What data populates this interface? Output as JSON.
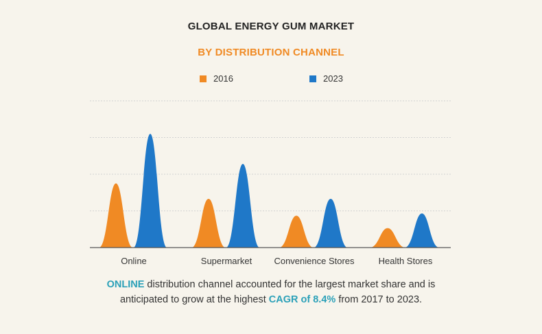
{
  "colors": {
    "background": "#f7f4ec",
    "series_2016": "#f08a24",
    "series_2023": "#1f78c8",
    "accent_teal": "#2aa0b8",
    "grid": "#d2d2d2",
    "axis": "#555555"
  },
  "chart_data": {
    "type": "area",
    "title": "GLOBAL ENERGY GUM MARKET",
    "subtitle": "BY DISTRIBUTION CHANNEL",
    "categories": [
      "Online",
      "Supermarket",
      "Convenience Stores",
      "Health Stores"
    ],
    "series": [
      {
        "name": "2016",
        "color": "#f08a24",
        "values": [
          1.75,
          1.33,
          0.87,
          0.53
        ]
      },
      {
        "name": "2023",
        "color": "#1f78c8",
        "values": [
          3.1,
          2.28,
          1.33,
          0.93
        ]
      }
    ],
    "ylim": [
      0,
      4
    ],
    "gridlines": 4,
    "grid": true,
    "legend_position": "top-center",
    "xlabel": "",
    "ylabel": ""
  },
  "caption": {
    "part1": "ONLINE",
    "part2": " distribution channel accounted for the largest market share and is",
    "part3": "anticipated to grow at the highest ",
    "part4": "CAGR of  8.4%",
    "part5": " from 2017 to 2023."
  }
}
